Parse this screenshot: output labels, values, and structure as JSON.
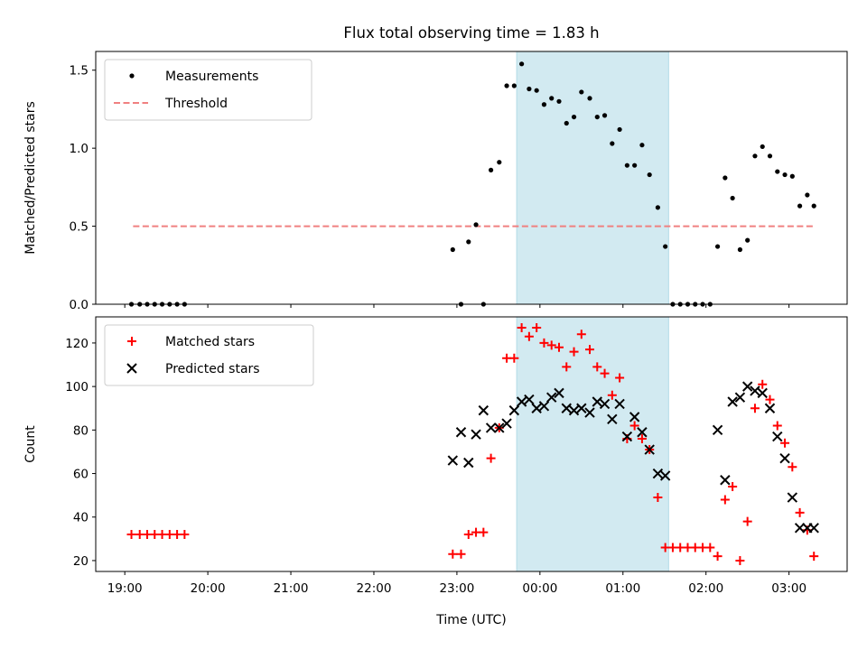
{
  "chart_data": {
    "type": "scatter",
    "title": "Flux total observing time = 1.83 h",
    "xlabel": "Time (UTC)",
    "x_unit": "hours after 19:00 UTC",
    "xlim": [
      -0.35,
      8.7
    ],
    "x_ticks": [
      0,
      1,
      2,
      3,
      4,
      5,
      6,
      7,
      8
    ],
    "x_tick_labels": [
      "19:00",
      "20:00",
      "21:00",
      "22:00",
      "23:00",
      "00:00",
      "01:00",
      "02:00",
      "03:00"
    ],
    "shaded_band": {
      "x_start": 4.72,
      "x_end": 6.55,
      "color": "#add8e6"
    },
    "panels": [
      {
        "ylabel": "Matched/Predicted stars",
        "ylim": [
          0,
          1.62
        ],
        "y_ticks": [
          0.0,
          0.5,
          1.0,
          1.5
        ],
        "y_tick_labels": [
          "0.0",
          "0.5",
          "1.0",
          "1.5"
        ],
        "legend": [
          "Measurements",
          "Threshold"
        ],
        "threshold": {
          "y": 0.5,
          "x_start": 0.1,
          "x_end": 8.3,
          "color": "#f08080"
        },
        "series": [
          {
            "name": "Measurements",
            "marker": "dot",
            "color": "#000000",
            "x": [
              0.08,
              0.18,
              0.27,
              0.36,
              0.45,
              0.54,
              0.63,
              0.72,
              3.95,
              4.05,
              4.14,
              4.23,
              4.32,
              4.41,
              4.51,
              4.6,
              4.69,
              4.78,
              4.87,
              4.96,
              5.05,
              5.14,
              5.23,
              5.32,
              5.41,
              5.5,
              5.6,
              5.69,
              5.78,
              5.87,
              5.96,
              6.05,
              6.14,
              6.23,
              6.32,
              6.42,
              6.51,
              6.6,
              6.69,
              6.78,
              6.87,
              6.96,
              7.05,
              7.14,
              7.23,
              7.32,
              7.41,
              7.5,
              7.59,
              7.68,
              7.77,
              7.86,
              7.95,
              8.04,
              8.13,
              8.22,
              8.3
            ],
            "y": [
              0,
              0,
              0,
              0,
              0,
              0,
              0,
              0,
              0.35,
              0.0,
              0.4,
              0.51,
              0.0,
              0.86,
              0.91,
              1.4,
              1.4,
              1.54,
              1.38,
              1.37,
              1.28,
              1.32,
              1.3,
              1.16,
              1.2,
              1.36,
              1.32,
              1.2,
              1.21,
              1.03,
              1.12,
              0.89,
              0.89,
              1.02,
              0.83,
              0.62,
              0.37,
              0,
              0,
              0,
              0,
              0,
              0,
              0.37,
              0.81,
              0.68,
              0.35,
              0.41,
              0.95,
              1.01,
              0.95,
              0.85,
              0.83,
              0.82,
              0.63,
              0.7,
              0.63
            ]
          }
        ]
      },
      {
        "ylabel": "Count",
        "ylim": [
          15,
          132
        ],
        "y_ticks": [
          20,
          40,
          60,
          80,
          100,
          120
        ],
        "y_tick_labels": [
          "20",
          "40",
          "60",
          "80",
          "100",
          "120"
        ],
        "legend": [
          "Matched stars",
          "Predicted stars"
        ],
        "series": [
          {
            "name": "Matched stars",
            "marker": "plus",
            "color": "#ff0000",
            "x": [
              0.08,
              0.18,
              0.27,
              0.36,
              0.45,
              0.54,
              0.63,
              0.72,
              3.95,
              4.05,
              4.14,
              4.23,
              4.32,
              4.41,
              4.51,
              4.6,
              4.69,
              4.78,
              4.87,
              4.96,
              5.05,
              5.14,
              5.23,
              5.32,
              5.41,
              5.5,
              5.6,
              5.69,
              5.78,
              5.87,
              5.96,
              6.05,
              6.14,
              6.23,
              6.32,
              6.42,
              6.51,
              6.6,
              6.69,
              6.78,
              6.87,
              6.96,
              7.05,
              7.14,
              7.23,
              7.32,
              7.41,
              7.5,
              7.59,
              7.68,
              7.77,
              7.86,
              7.95,
              8.04,
              8.13,
              8.22,
              8.3
            ],
            "y": [
              32,
              32,
              32,
              32,
              32,
              32,
              32,
              32,
              23,
              23,
              32,
              33,
              33,
              67,
              81,
              113,
              113,
              127,
              123,
              127,
              120,
              119,
              118,
              109,
              116,
              124,
              117,
              109,
              106,
              96,
              104,
              76,
              82,
              76,
              71,
              49,
              26,
              26,
              26,
              26,
              26,
              26,
              26,
              22,
              48,
              54,
              20,
              38,
              90,
              101,
              94,
              82,
              74,
              63,
              42,
              34,
              22
            ]
          },
          {
            "name": "Predicted stars",
            "marker": "x",
            "color": "#000000",
            "x": [
              3.95,
              4.05,
              4.14,
              4.23,
              4.32,
              4.41,
              4.51,
              4.6,
              4.69,
              4.78,
              4.87,
              4.96,
              5.05,
              5.14,
              5.23,
              5.32,
              5.41,
              5.5,
              5.6,
              5.69,
              5.78,
              5.87,
              5.96,
              6.05,
              6.14,
              6.23,
              6.32,
              6.42,
              6.51,
              7.14,
              7.23,
              7.32,
              7.41,
              7.5,
              7.59,
              7.68,
              7.77,
              7.86,
              7.95,
              8.04,
              8.13,
              8.22,
              8.3
            ],
            "y": [
              66,
              79,
              65,
              78,
              89,
              81,
              81,
              83,
              89,
              93,
              94,
              90,
              91,
              95,
              97,
              90,
              89,
              90,
              88,
              93,
              92,
              85,
              92,
              77,
              86,
              79,
              71,
              60,
              59,
              80,
              57,
              93,
              95,
              100,
              98,
              97,
              90,
              77,
              67,
              49,
              35,
              35,
              35
            ]
          }
        ]
      }
    ]
  }
}
